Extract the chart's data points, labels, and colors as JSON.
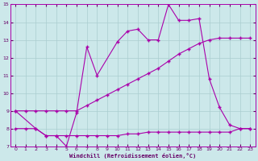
{
  "background_color": "#cce8ea",
  "grid_color": "#aacdd0",
  "line_color": "#aa00aa",
  "xlabel": "Windchill (Refroidissement éolien,°C)",
  "xlabel_color": "#660066",
  "xlim": [
    -0.5,
    23.5
  ],
  "ylim": [
    7,
    15
  ],
  "yticks": [
    7,
    8,
    9,
    10,
    11,
    12,
    13,
    14,
    15
  ],
  "xticks": [
    0,
    1,
    2,
    3,
    4,
    5,
    6,
    7,
    8,
    9,
    10,
    11,
    12,
    13,
    14,
    15,
    16,
    17,
    18,
    19,
    20,
    21,
    22,
    23
  ],
  "line_bottom_x": [
    0,
    1,
    2,
    3,
    4,
    5,
    6,
    7,
    8,
    9,
    10,
    11,
    12,
    13,
    14,
    15,
    16,
    17,
    18,
    19,
    20,
    21,
    22,
    23
  ],
  "line_bottom_y": [
    8.0,
    8.0,
    8.0,
    7.6,
    7.6,
    7.6,
    7.6,
    7.6,
    7.6,
    7.6,
    7.6,
    7.7,
    7.7,
    7.8,
    7.8,
    7.8,
    7.8,
    7.8,
    7.8,
    7.8,
    7.8,
    7.8,
    8.0,
    8.0
  ],
  "line_mid_x": [
    0,
    1,
    2,
    3,
    4,
    5,
    6,
    7,
    8,
    9,
    10,
    11,
    12,
    13,
    14,
    15,
    16,
    17,
    18,
    19,
    20,
    21,
    22,
    23
  ],
  "line_mid_y": [
    9.0,
    9.0,
    9.0,
    9.0,
    9.0,
    9.0,
    9.0,
    9.3,
    9.6,
    9.9,
    10.2,
    10.5,
    10.8,
    11.1,
    11.4,
    11.8,
    12.2,
    12.5,
    12.8,
    13.0,
    13.1,
    13.1,
    13.1,
    13.1
  ],
  "line_top_x": [
    0,
    2,
    3,
    4,
    5,
    6,
    7,
    8,
    10,
    11,
    12,
    13,
    14,
    15,
    16,
    17,
    18,
    19,
    20,
    21,
    22,
    23
  ],
  "line_top_y": [
    9.0,
    8.0,
    7.6,
    7.6,
    7.0,
    8.9,
    12.6,
    11.0,
    12.9,
    13.5,
    13.6,
    13.0,
    13.0,
    15.0,
    14.1,
    14.1,
    14.2,
    10.8,
    9.2,
    8.2,
    8.0,
    8.0
  ],
  "marker": "+"
}
